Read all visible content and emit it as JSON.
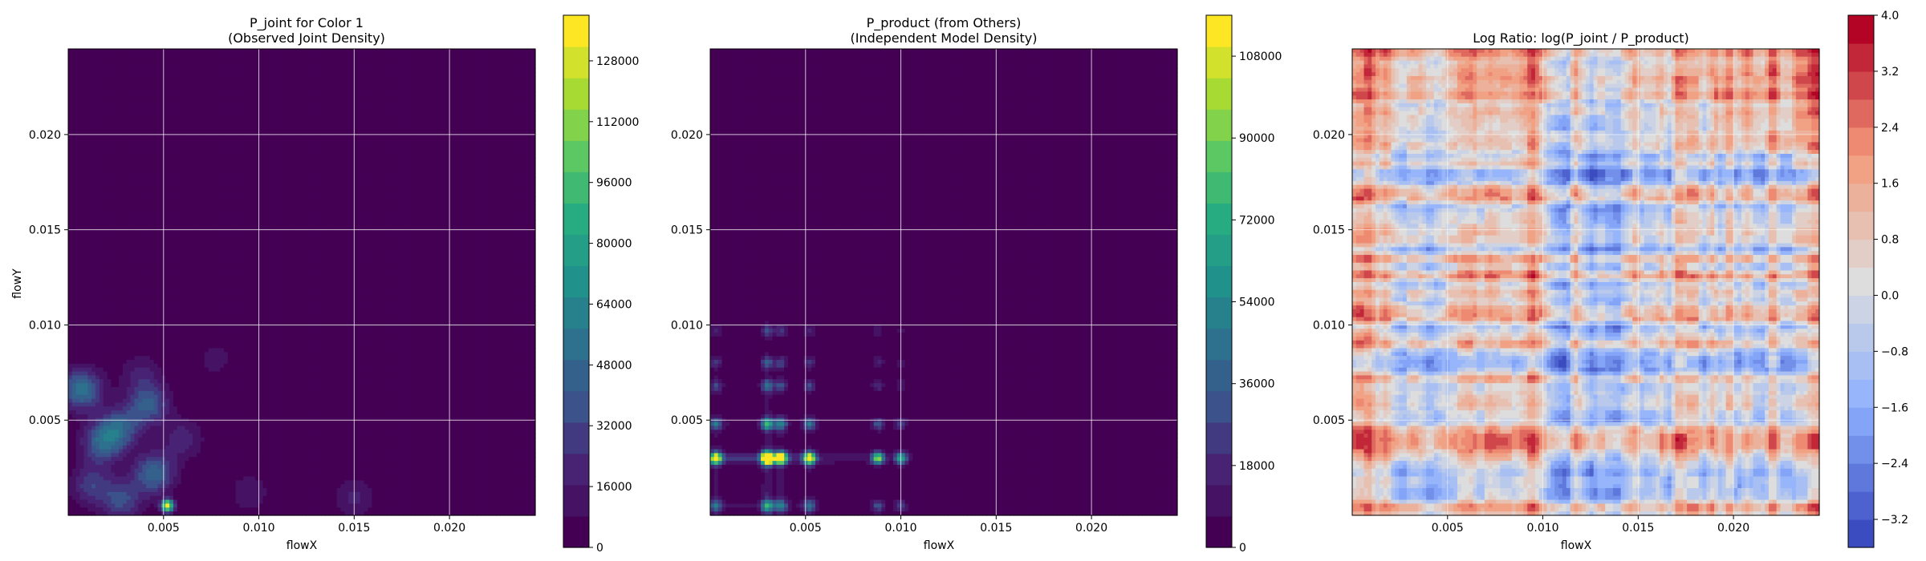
{
  "chart_data": [
    {
      "type": "heatmap",
      "title": "P_joint for Color 1",
      "subtitle": "(Observed Joint Density)",
      "xlabel": "flowX",
      "ylabel": "flowY",
      "xlim": [
        0.0,
        0.0245
      ],
      "ylim": [
        0.0,
        0.0245
      ],
      "xticks": [
        0.005,
        0.01,
        0.015,
        0.02
      ],
      "xtick_labels": [
        "0.005",
        "0.010",
        "0.015",
        "0.020"
      ],
      "yticks": [
        0.005,
        0.01,
        0.015,
        0.02
      ],
      "ytick_labels": [
        "0.005",
        "0.010",
        "0.015",
        "0.020"
      ],
      "grid": true,
      "colormap": "viridis",
      "colorbar": {
        "min": 0,
        "max": 140000,
        "ticks": [
          0,
          16000,
          32000,
          48000,
          64000,
          80000,
          96000,
          112000,
          128000
        ],
        "tick_labels": [
          "0",
          "16000",
          "32000",
          "48000",
          "64000",
          "80000",
          "96000",
          "112000",
          "128000"
        ]
      },
      "background_level": 0,
      "hotspots": [
        {
          "x": 0.0052,
          "y": 0.0005,
          "value": 140000
        },
        {
          "x": 0.0007,
          "y": 0.0066,
          "value": 55000
        },
        {
          "x": 0.0018,
          "y": 0.0038,
          "value": 45000
        },
        {
          "x": 0.0027,
          "y": 0.0046,
          "value": 40000
        },
        {
          "x": 0.0042,
          "y": 0.0058,
          "value": 42000
        },
        {
          "x": 0.0045,
          "y": 0.0022,
          "value": 48000
        },
        {
          "x": 0.0028,
          "y": 0.0008,
          "value": 35000
        },
        {
          "x": 0.0012,
          "y": 0.0016,
          "value": 30000
        },
        {
          "x": 0.006,
          "y": 0.004,
          "value": 22000
        },
        {
          "x": 0.0038,
          "y": 0.0074,
          "value": 18000
        },
        {
          "x": 0.0095,
          "y": 0.0012,
          "value": 15000
        },
        {
          "x": 0.015,
          "y": 0.0009,
          "value": 18000
        },
        {
          "x": 0.0077,
          "y": 0.0082,
          "value": 12000
        }
      ]
    },
    {
      "type": "heatmap",
      "title": "P_product (from Others)",
      "subtitle": "(Independent Model Density)",
      "xlabel": "flowX",
      "ylabel": "",
      "xlim": [
        0.0,
        0.0245
      ],
      "ylim": [
        0.0,
        0.0245
      ],
      "xticks": [
        0.005,
        0.01,
        0.015,
        0.02
      ],
      "xtick_labels": [
        "0.005",
        "0.010",
        "0.015",
        "0.020"
      ],
      "yticks": [
        0.005,
        0.01,
        0.015,
        0.02
      ],
      "ytick_labels": [
        "0.005",
        "0.010",
        "0.015",
        "0.020"
      ],
      "grid": true,
      "colormap": "viridis",
      "colorbar": {
        "min": 0,
        "max": 117000,
        "ticks": [
          0,
          18000,
          36000,
          54000,
          72000,
          90000,
          108000
        ],
        "tick_labels": [
          "0",
          "18000",
          "36000",
          "54000",
          "72000",
          "90000",
          "108000"
        ]
      },
      "row_marginal_y": [
        0.0005,
        0.003,
        0.003,
        0.0048,
        0.0068,
        0.008,
        0.0097
      ],
      "row_marginal_weight": [
        0.55,
        0.75,
        1.0,
        0.6,
        0.35,
        0.3,
        0.25
      ],
      "col_marginal_x": [
        0.0003,
        0.003,
        0.0037,
        0.0052,
        0.0088,
        0.01
      ],
      "col_marginal_weight": [
        0.55,
        1.0,
        0.7,
        0.6,
        0.45,
        0.35
      ]
    },
    {
      "type": "heatmap",
      "title": "Log Ratio: log(P_joint / P_product)",
      "xlabel": "flowX",
      "ylabel": "",
      "xlim": [
        0.0,
        0.0245
      ],
      "ylim": [
        0.0,
        0.0245
      ],
      "xticks": [
        0.005,
        0.01,
        0.015,
        0.02
      ],
      "xtick_labels": [
        "0.005",
        "0.010",
        "0.015",
        "0.020"
      ],
      "yticks": [
        0.005,
        0.01,
        0.015,
        0.02
      ],
      "ytick_labels": [
        "0.005",
        "0.010",
        "0.015",
        "0.020"
      ],
      "grid": true,
      "colormap": "coolwarm",
      "colorbar": {
        "min": -3.6,
        "max": 4.0,
        "ticks": [
          -3.2,
          -2.4,
          -1.6,
          -0.8,
          0.0,
          0.8,
          1.6,
          2.4,
          3.2,
          4.0
        ],
        "tick_labels": [
          "−3.2",
          "−2.4",
          "−1.6",
          "−0.8",
          "0.0",
          "0.8",
          "1.6",
          "2.4",
          "3.2",
          "4.0"
        ]
      }
    }
  ]
}
